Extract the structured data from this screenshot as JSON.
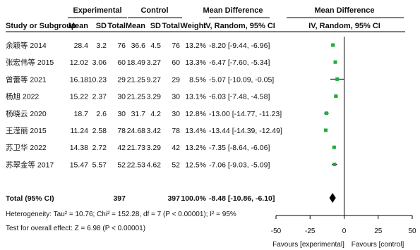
{
  "chart_data": {
    "type": "forest",
    "headers": {
      "group_experimental": "Experimental",
      "group_control": "Control",
      "mean_difference_col": "Mean Difference",
      "mean_difference_plot": "Mean Difference",
      "study": "Study or Subgroup",
      "mean_e": "Mean",
      "sd_e": "SD",
      "total_e": "Total",
      "mean_c": "Mean",
      "sd_c": "SD",
      "total_c": "Total",
      "weight": "Weight",
      "md_method": "IV, Random, 95% CI",
      "plot_method": "IV, Random, 95% CI"
    },
    "studies": [
      {
        "name": "余颖等 2014",
        "mean_e": "28.4",
        "sd_e": "3.2",
        "total_e": "76",
        "mean_c": "36.6",
        "sd_c": "4.5",
        "total_c": "76",
        "weight": "13.2%",
        "ci_text": "-8.20 [-9.44, -6.96]",
        "md": -8.2,
        "lo": -9.44,
        "hi": -6.96
      },
      {
        "name": "张宏伟等 2015",
        "mean_e": "12.02",
        "sd_e": "3.06",
        "total_e": "60",
        "mean_c": "18.49",
        "sd_c": "3.27",
        "total_c": "60",
        "weight": "13.3%",
        "ci_text": "-6.47 [-7.60, -5.34]",
        "md": -6.47,
        "lo": -7.6,
        "hi": -5.34
      },
      {
        "name": "曾蕾等 2021",
        "mean_e": "16.18",
        "sd_e": "10.23",
        "total_e": "29",
        "mean_c": "21.25",
        "sd_c": "9.27",
        "total_c": "29",
        "weight": "8.5%",
        "ci_text": "-5.07 [-10.09, -0.05]",
        "md": -5.07,
        "lo": -10.09,
        "hi": -0.05
      },
      {
        "name": "杨旭 2022",
        "mean_e": "15.22",
        "sd_e": "2.37",
        "total_e": "30",
        "mean_c": "21.25",
        "sd_c": "3.29",
        "total_c": "30",
        "weight": "13.1%",
        "ci_text": "-6.03 [-7.48, -4.58]",
        "md": -6.03,
        "lo": -7.48,
        "hi": -4.58
      },
      {
        "name": "杨晓云 2020",
        "mean_e": "18.7",
        "sd_e": "2.6",
        "total_e": "30",
        "mean_c": "31.7",
        "sd_c": "4.2",
        "total_c": "30",
        "weight": "12.8%",
        "ci_text": "-13.00 [-14.77, -11.23]",
        "md": -13.0,
        "lo": -14.77,
        "hi": -11.23
      },
      {
        "name": "王滢丽 2015",
        "mean_e": "11.24",
        "sd_e": "2.58",
        "total_e": "78",
        "mean_c": "24.68",
        "sd_c": "3.42",
        "total_c": "78",
        "weight": "13.4%",
        "ci_text": "-13.44 [-14.39, -12.49]",
        "md": -13.44,
        "lo": -14.39,
        "hi": -12.49
      },
      {
        "name": "苏卫华 2022",
        "mean_e": "14.38",
        "sd_e": "2.72",
        "total_e": "42",
        "mean_c": "21.73",
        "sd_c": "3.29",
        "total_c": "42",
        "weight": "13.2%",
        "ci_text": "-7.35 [-8.64, -6.06]",
        "md": -7.35,
        "lo": -8.64,
        "hi": -6.06
      },
      {
        "name": "苏翠金等 2017",
        "mean_e": "15.47",
        "sd_e": "5.57",
        "total_e": "52",
        "mean_c": "22.53",
        "sd_c": "4.62",
        "total_c": "52",
        "weight": "12.5%",
        "ci_text": "-7.06 [-9.03, -5.09]",
        "md": -7.06,
        "lo": -9.03,
        "hi": -5.09
      }
    ],
    "total": {
      "label": "Total (95% CI)",
      "total_e": "397",
      "total_c": "397",
      "weight": "100.0%",
      "ci_text": "-8.48 [-10.86, -6.10]",
      "md": -8.48,
      "lo": -10.86,
      "hi": -6.1
    },
    "heterogeneity": "Heterogeneity: Tau² = 10.76; Chi² = 152.28, df = 7 (P < 0.00001); I² = 95%",
    "overall_effect": "Test for overall effect: Z = 6.98 (P < 0.00001)",
    "x_axis": {
      "range": [
        -50,
        50
      ],
      "ticks": [
        -50,
        -25,
        0,
        25,
        50
      ],
      "tick_labels": [
        "-50",
        "-25",
        "0",
        "25",
        "50"
      ]
    },
    "favours_left": "Favours [experimental]",
    "favours_right": "Favours [control]",
    "marker_color": "#1fae3a",
    "line_color": "#000000"
  }
}
